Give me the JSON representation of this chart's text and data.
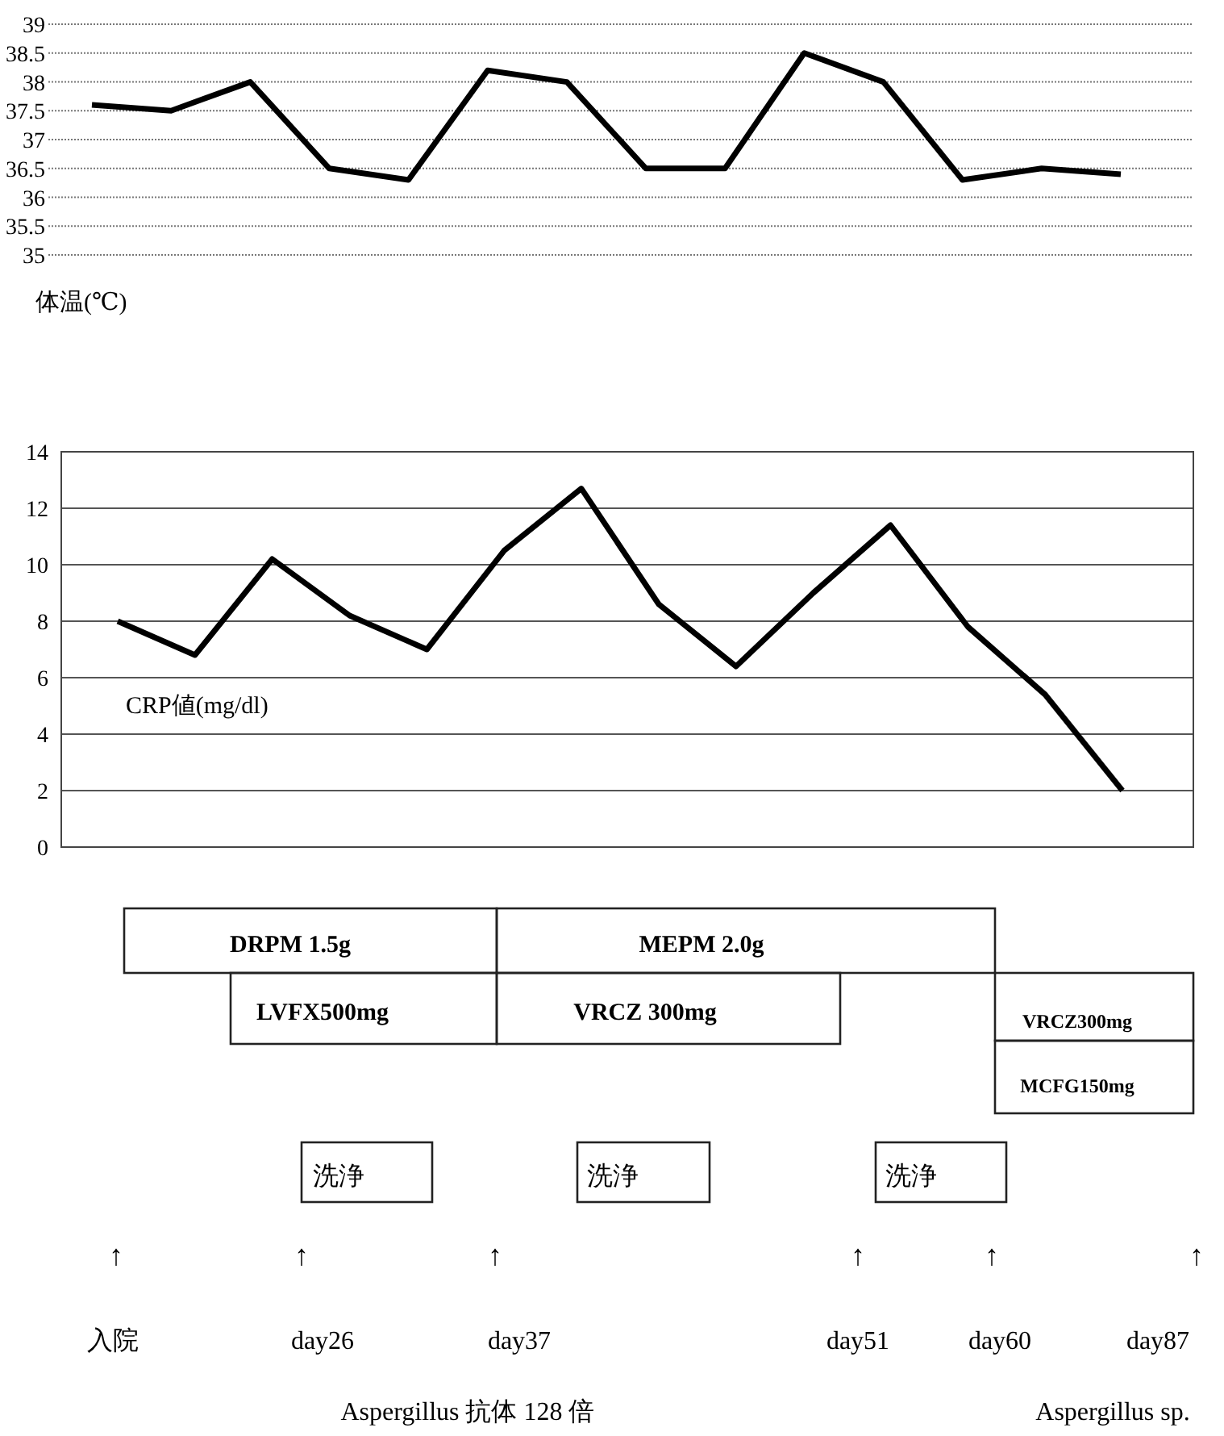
{
  "chart_data": [
    {
      "type": "line",
      "annotations": [
        "体温(℃)"
      ],
      "categories": [
        null,
        null,
        null,
        null,
        null,
        null,
        null,
        null,
        null,
        null,
        null,
        null,
        null,
        null
      ],
      "series": [
        {
          "color": "#000000",
          "values": [
            37.6,
            37.5,
            38.0,
            36.5,
            36.3,
            38.2,
            38.0,
            36.5,
            36.5,
            38.5,
            38.0,
            36.3,
            36.5,
            36.4
          ]
        }
      ],
      "ylim": [
        35,
        39
      ],
      "yticks": [
        35,
        35.5,
        36,
        36.5,
        37,
        37.5,
        38,
        38.5,
        39
      ],
      "grid": "y",
      "tick_labels": "y",
      "line_style": "solid",
      "marker": "none"
    },
    {
      "type": "line",
      "ylabel": "CRP値(mg/dl)",
      "categories": [
        null,
        null,
        null,
        null,
        null,
        null,
        null,
        null,
        null,
        null,
        null,
        null,
        null,
        null
      ],
      "series": [
        {
          "color": "#000000",
          "values": [
            8.0,
            6.8,
            10.2,
            8.2,
            7.0,
            10.5,
            12.7,
            8.6,
            6.4,
            9.0,
            11.4,
            7.8,
            5.4,
            2.0
          ]
        }
      ],
      "ylim": [
        0,
        14
      ],
      "yticks": [
        0,
        2,
        4,
        6,
        8,
        10,
        12,
        14
      ],
      "grid": "y",
      "tick_labels": "y",
      "line_style": "solid",
      "marker": "none"
    },
    {
      "type": "other",
      "annotations": [
        "DRPM 1.5g",
        "MEPM 2.0g",
        "LVFX500mg",
        "VRCZ 300mg",
        "VRCZ300mg",
        "MCFG150mg",
        "洗浄",
        "洗浄",
        "洗浄",
        "↑",
        "↑",
        "↑",
        "↑",
        "↑",
        "↑",
        "入院",
        "day26",
        "day37",
        "day51",
        "day60",
        "day87",
        "Aspergillus 抗体 128 倍",
        "Aspergillus sp."
      ]
    }
  ]
}
